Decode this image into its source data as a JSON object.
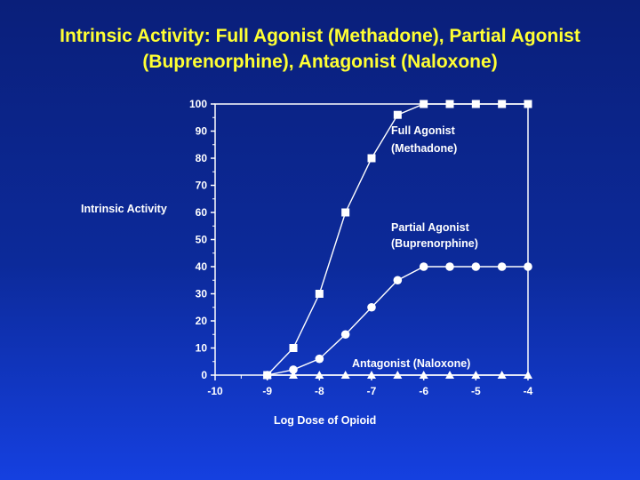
{
  "slide": {
    "title_line1": "Intrinsic Activity: Full Agonist (Methadone), Partial Agonist",
    "title_line2": "(Buprenorphine), Antagonist (Naloxone)"
  },
  "chart_data": {
    "type": "line",
    "ylabel": "Intrinsic Activity",
    "xlabel": "Log Dose of Opioid",
    "xlim": [
      -10,
      -4
    ],
    "ylim": [
      0,
      100
    ],
    "x_ticks": [
      -10,
      -9,
      -8,
      -7,
      -6,
      -5,
      -4
    ],
    "y_ticks": [
      0,
      10,
      20,
      30,
      40,
      50,
      60,
      70,
      80,
      90,
      100
    ],
    "series": [
      {
        "label_line1": "Full Agonist",
        "label_line2": "(Methadone)",
        "marker": "square",
        "x": [
          -9,
          -8.5,
          -8,
          -7.5,
          -7,
          -6.5,
          -6,
          -5.5,
          -5,
          -4.5,
          -4
        ],
        "y": [
          0,
          10,
          30,
          60,
          80,
          96,
          100,
          100,
          100,
          100,
          100
        ]
      },
      {
        "label_line1": "Partial Agonist",
        "label_line2": "(Buprenorphine)",
        "marker": "circle",
        "x": [
          -9,
          -8.5,
          -8,
          -7.5,
          -7,
          -6.5,
          -6,
          -5.5,
          -5,
          -4.5,
          -4
        ],
        "y": [
          0,
          2,
          6,
          15,
          25,
          35,
          40,
          40,
          40,
          40,
          40
        ]
      },
      {
        "label_line1": "Antagonist (Naloxone)",
        "label_line2": "",
        "marker": "triangle",
        "x": [
          -9,
          -8.5,
          -8,
          -7.5,
          -7,
          -6.5,
          -6,
          -5.5,
          -5,
          -4.5,
          -4
        ],
        "y": [
          0,
          0,
          0,
          0,
          0,
          0,
          0,
          0,
          0,
          0,
          0
        ]
      }
    ],
    "colors": {
      "title": "#ffff33",
      "text": "#ffffff",
      "marks": "#ffffff"
    }
  }
}
